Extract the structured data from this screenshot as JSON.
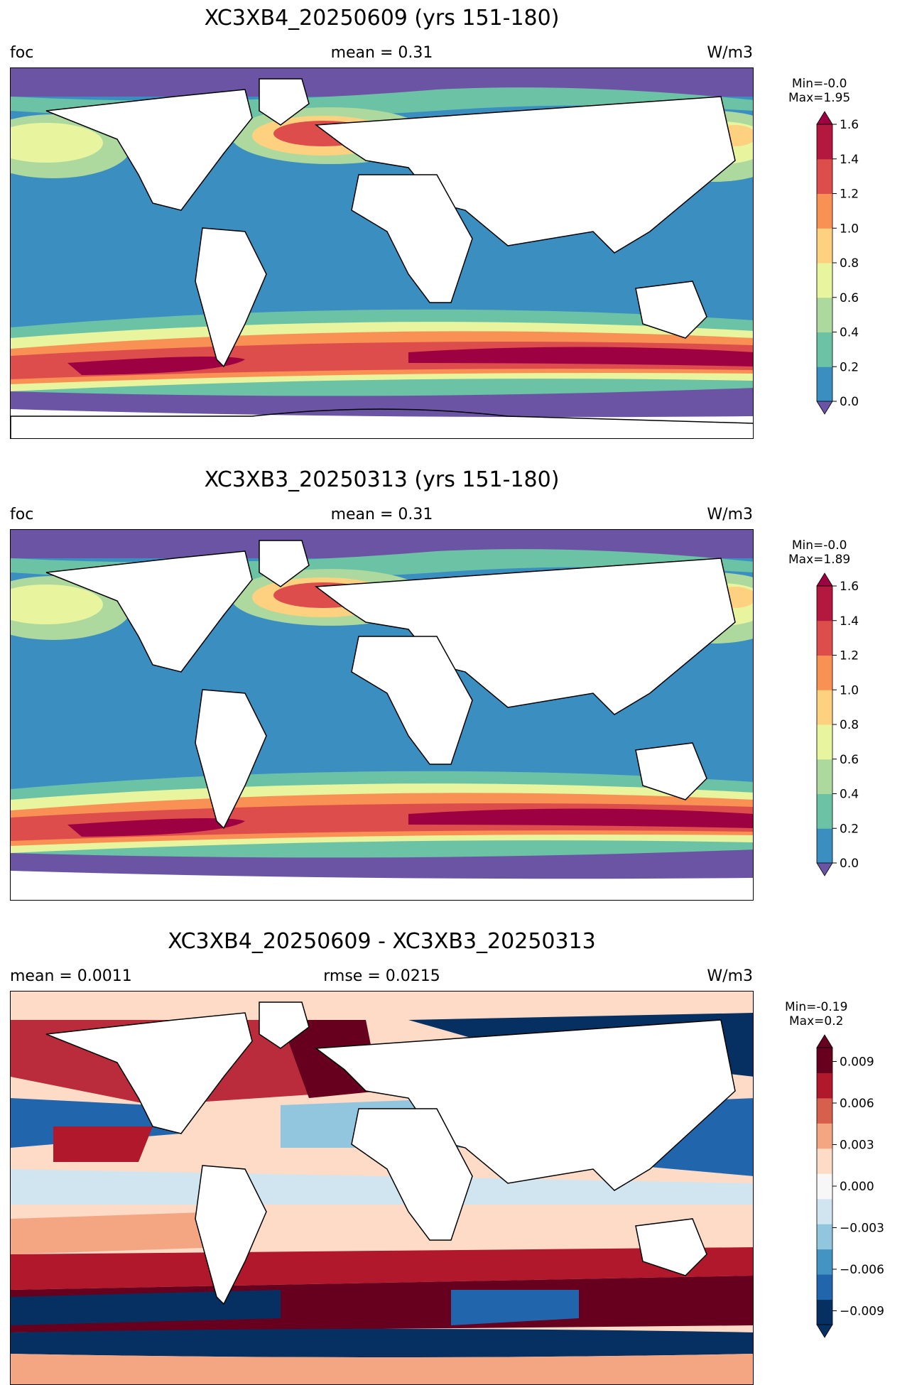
{
  "panels": [
    {
      "title": "XC3XB4_20250609 (yrs 151-180)",
      "left": "foc",
      "center": "mean = 0.31",
      "right": "W/m3",
      "min": "Min=-0.0",
      "max": "Max=1.95",
      "colorbar": {
        "kind": "sequential",
        "colors": [
          "#6c54a5",
          "#3a8ec0",
          "#6cc2a5",
          "#add99f",
          "#e8f59e",
          "#fdd17f",
          "#f99155",
          "#dd4d4b",
          "#b4183e",
          "#9e0142"
        ],
        "ticks": [
          "1.6",
          "1.4",
          "1.2",
          "1.0",
          "0.8",
          "0.6",
          "0.4",
          "0.2",
          "0.0"
        ]
      }
    },
    {
      "title": "XC3XB3_20250313 (yrs 151-180)",
      "left": "foc",
      "center": "mean = 0.31",
      "right": "W/m3",
      "min": "Min=-0.0",
      "max": "Max=1.89",
      "colorbar": {
        "kind": "sequential",
        "colors": [
          "#6c54a5",
          "#3a8ec0",
          "#6cc2a5",
          "#add99f",
          "#e8f59e",
          "#fdd17f",
          "#f99155",
          "#dd4d4b",
          "#b4183e",
          "#9e0142"
        ],
        "ticks": [
          "1.6",
          "1.4",
          "1.2",
          "1.0",
          "0.8",
          "0.6",
          "0.4",
          "0.2",
          "0.0"
        ]
      }
    },
    {
      "title": "XC3XB4_20250609 - XC3XB3_20250313",
      "left": "mean = 0.0011",
      "center": "rmse = 0.0215",
      "right": "W/m3",
      "min": "Min=-0.19",
      "max": "Max=0.2",
      "colorbar": {
        "kind": "diverging",
        "colors": [
          "#053061",
          "#2166ac",
          "#4393c3",
          "#92c5de",
          "#d1e5f0",
          "#f7f7f7",
          "#fddbc7",
          "#f4a582",
          "#d6604d",
          "#b2182b",
          "#67001f"
        ],
        "ticks": [
          "0.009",
          "0.006",
          "0.003",
          "0.000",
          "−0.003",
          "−0.006",
          "−0.009"
        ]
      }
    }
  ]
}
